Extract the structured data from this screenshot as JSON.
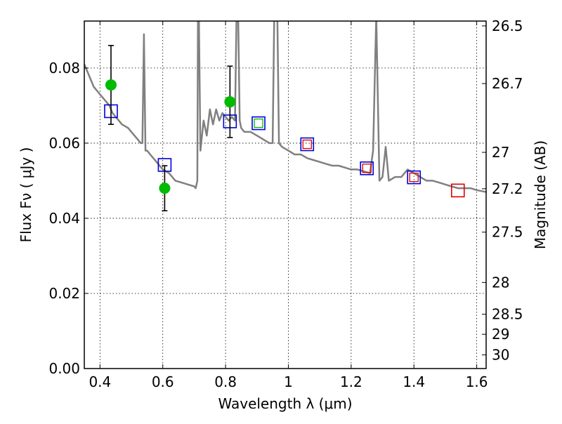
{
  "chart_data": {
    "type": "scatter",
    "title": "",
    "xlabel": "Wavelength  λ (μm)",
    "ylabel": "Flux  Fν ( μJy )",
    "y2label": "Magnitude (AB)",
    "xlim": [
      0.35,
      1.63
    ],
    "ylim": [
      0.0,
      0.0925
    ],
    "grid": true,
    "legend": "none",
    "x_ticks": [
      0.4,
      0.6,
      0.8,
      1.0,
      1.2,
      1.4,
      1.6
    ],
    "x_tick_labels": [
      "0.4",
      "0.6",
      "0.8",
      "1",
      "1.2",
      "1.4",
      "1.6"
    ],
    "y_ticks": [
      0.0,
      0.02,
      0.04,
      0.06,
      0.08
    ],
    "y_tick_labels": [
      "0.00",
      "0.02",
      "0.04",
      "0.06",
      "0.08"
    ],
    "y2_ticks": [
      26.5,
      26.7,
      27,
      27.2,
      27.5,
      28,
      28.5,
      29,
      30
    ],
    "y2_tick_labels": [
      "26.5",
      "26.7",
      "27",
      "27.2",
      "27.5",
      "28",
      "28.5",
      "29",
      "30"
    ],
    "colors": {
      "model_line": "#808080",
      "observed": "#00bb00",
      "model_box": "#0000dd",
      "nir_box": "#dd0000",
      "green_box": "#00bb00",
      "errorbar": "#000000"
    },
    "model_spectrum": {
      "x": [
        0.35,
        0.36,
        0.37,
        0.375,
        0.38,
        0.39,
        0.4,
        0.41,
        0.42,
        0.43,
        0.44,
        0.45,
        0.46,
        0.47,
        0.48,
        0.49,
        0.5,
        0.51,
        0.52,
        0.53,
        0.535,
        0.54,
        0.545,
        0.55,
        0.56,
        0.58,
        0.6,
        0.62,
        0.64,
        0.66,
        0.68,
        0.7,
        0.705,
        0.71,
        0.712,
        0.715,
        0.72,
        0.73,
        0.74,
        0.75,
        0.76,
        0.77,
        0.78,
        0.79,
        0.8,
        0.81,
        0.82,
        0.83,
        0.835,
        0.84,
        0.845,
        0.85,
        0.86,
        0.88,
        0.9,
        0.92,
        0.94,
        0.95,
        0.955,
        0.96,
        0.965,
        0.97,
        0.98,
        1.0,
        1.02,
        1.04,
        1.06,
        1.08,
        1.1,
        1.12,
        1.14,
        1.16,
        1.18,
        1.2,
        1.22,
        1.24,
        1.26,
        1.27,
        1.28,
        1.29,
        1.3,
        1.31,
        1.32,
        1.34,
        1.36,
        1.38,
        1.4,
        1.42,
        1.44,
        1.46,
        1.48,
        1.5,
        1.52,
        1.54,
        1.56,
        1.58,
        1.6,
        1.63
      ],
      "y": [
        0.081,
        0.079,
        0.077,
        0.076,
        0.075,
        0.074,
        0.073,
        0.072,
        0.071,
        0.07,
        0.068,
        0.067,
        0.066,
        0.065,
        0.0645,
        0.064,
        0.063,
        0.062,
        0.061,
        0.06,
        0.06,
        0.089,
        0.058,
        0.058,
        0.057,
        0.055,
        0.053,
        0.052,
        0.05,
        0.0495,
        0.049,
        0.0485,
        0.048,
        0.05,
        0.094,
        0.094,
        0.058,
        0.066,
        0.062,
        0.069,
        0.065,
        0.069,
        0.066,
        0.068,
        0.067,
        0.066,
        0.067,
        0.066,
        0.094,
        0.094,
        0.066,
        0.064,
        0.063,
        0.063,
        0.062,
        0.061,
        0.06,
        0.06,
        0.094,
        0.094,
        0.094,
        0.06,
        0.059,
        0.058,
        0.057,
        0.057,
        0.056,
        0.0555,
        0.055,
        0.0545,
        0.054,
        0.054,
        0.0535,
        0.053,
        0.053,
        0.0525,
        0.052,
        0.058,
        0.094,
        0.05,
        0.051,
        0.059,
        0.05,
        0.051,
        0.051,
        0.053,
        0.052,
        0.051,
        0.05,
        0.05,
        0.0495,
        0.049,
        0.0485,
        0.048,
        0.048,
        0.048,
        0.0475,
        0.047
      ]
    },
    "observed_points": [
      {
        "x": 0.435,
        "y": 0.0755,
        "err": 0.0105
      },
      {
        "x": 0.606,
        "y": 0.048,
        "err": 0.006
      },
      {
        "x": 0.814,
        "y": 0.071,
        "err": 0.0095
      }
    ],
    "model_boxes": [
      {
        "x": 0.435,
        "y": 0.0685,
        "color": "model_box"
      },
      {
        "x": 0.606,
        "y": 0.0542,
        "color": "model_box"
      },
      {
        "x": 0.814,
        "y": 0.0658,
        "color": "model_box"
      },
      {
        "x": 0.905,
        "y": 0.0653,
        "color": "model_box"
      },
      {
        "x": 1.06,
        "y": 0.0597,
        "color": "model_box"
      },
      {
        "x": 1.25,
        "y": 0.0533,
        "color": "model_box"
      },
      {
        "x": 1.4,
        "y": 0.0509,
        "color": "model_box"
      },
      {
        "x": 1.54,
        "y": 0.0474,
        "color": "nir_box"
      }
    ],
    "inner_boxes": [
      {
        "x": 0.905,
        "y": 0.0653,
        "color": "green_box"
      },
      {
        "x": 1.06,
        "y": 0.0597,
        "color": "nir_box"
      },
      {
        "x": 1.25,
        "y": 0.0533,
        "color": "nir_box"
      },
      {
        "x": 1.4,
        "y": 0.0509,
        "color": "nir_box"
      }
    ]
  }
}
